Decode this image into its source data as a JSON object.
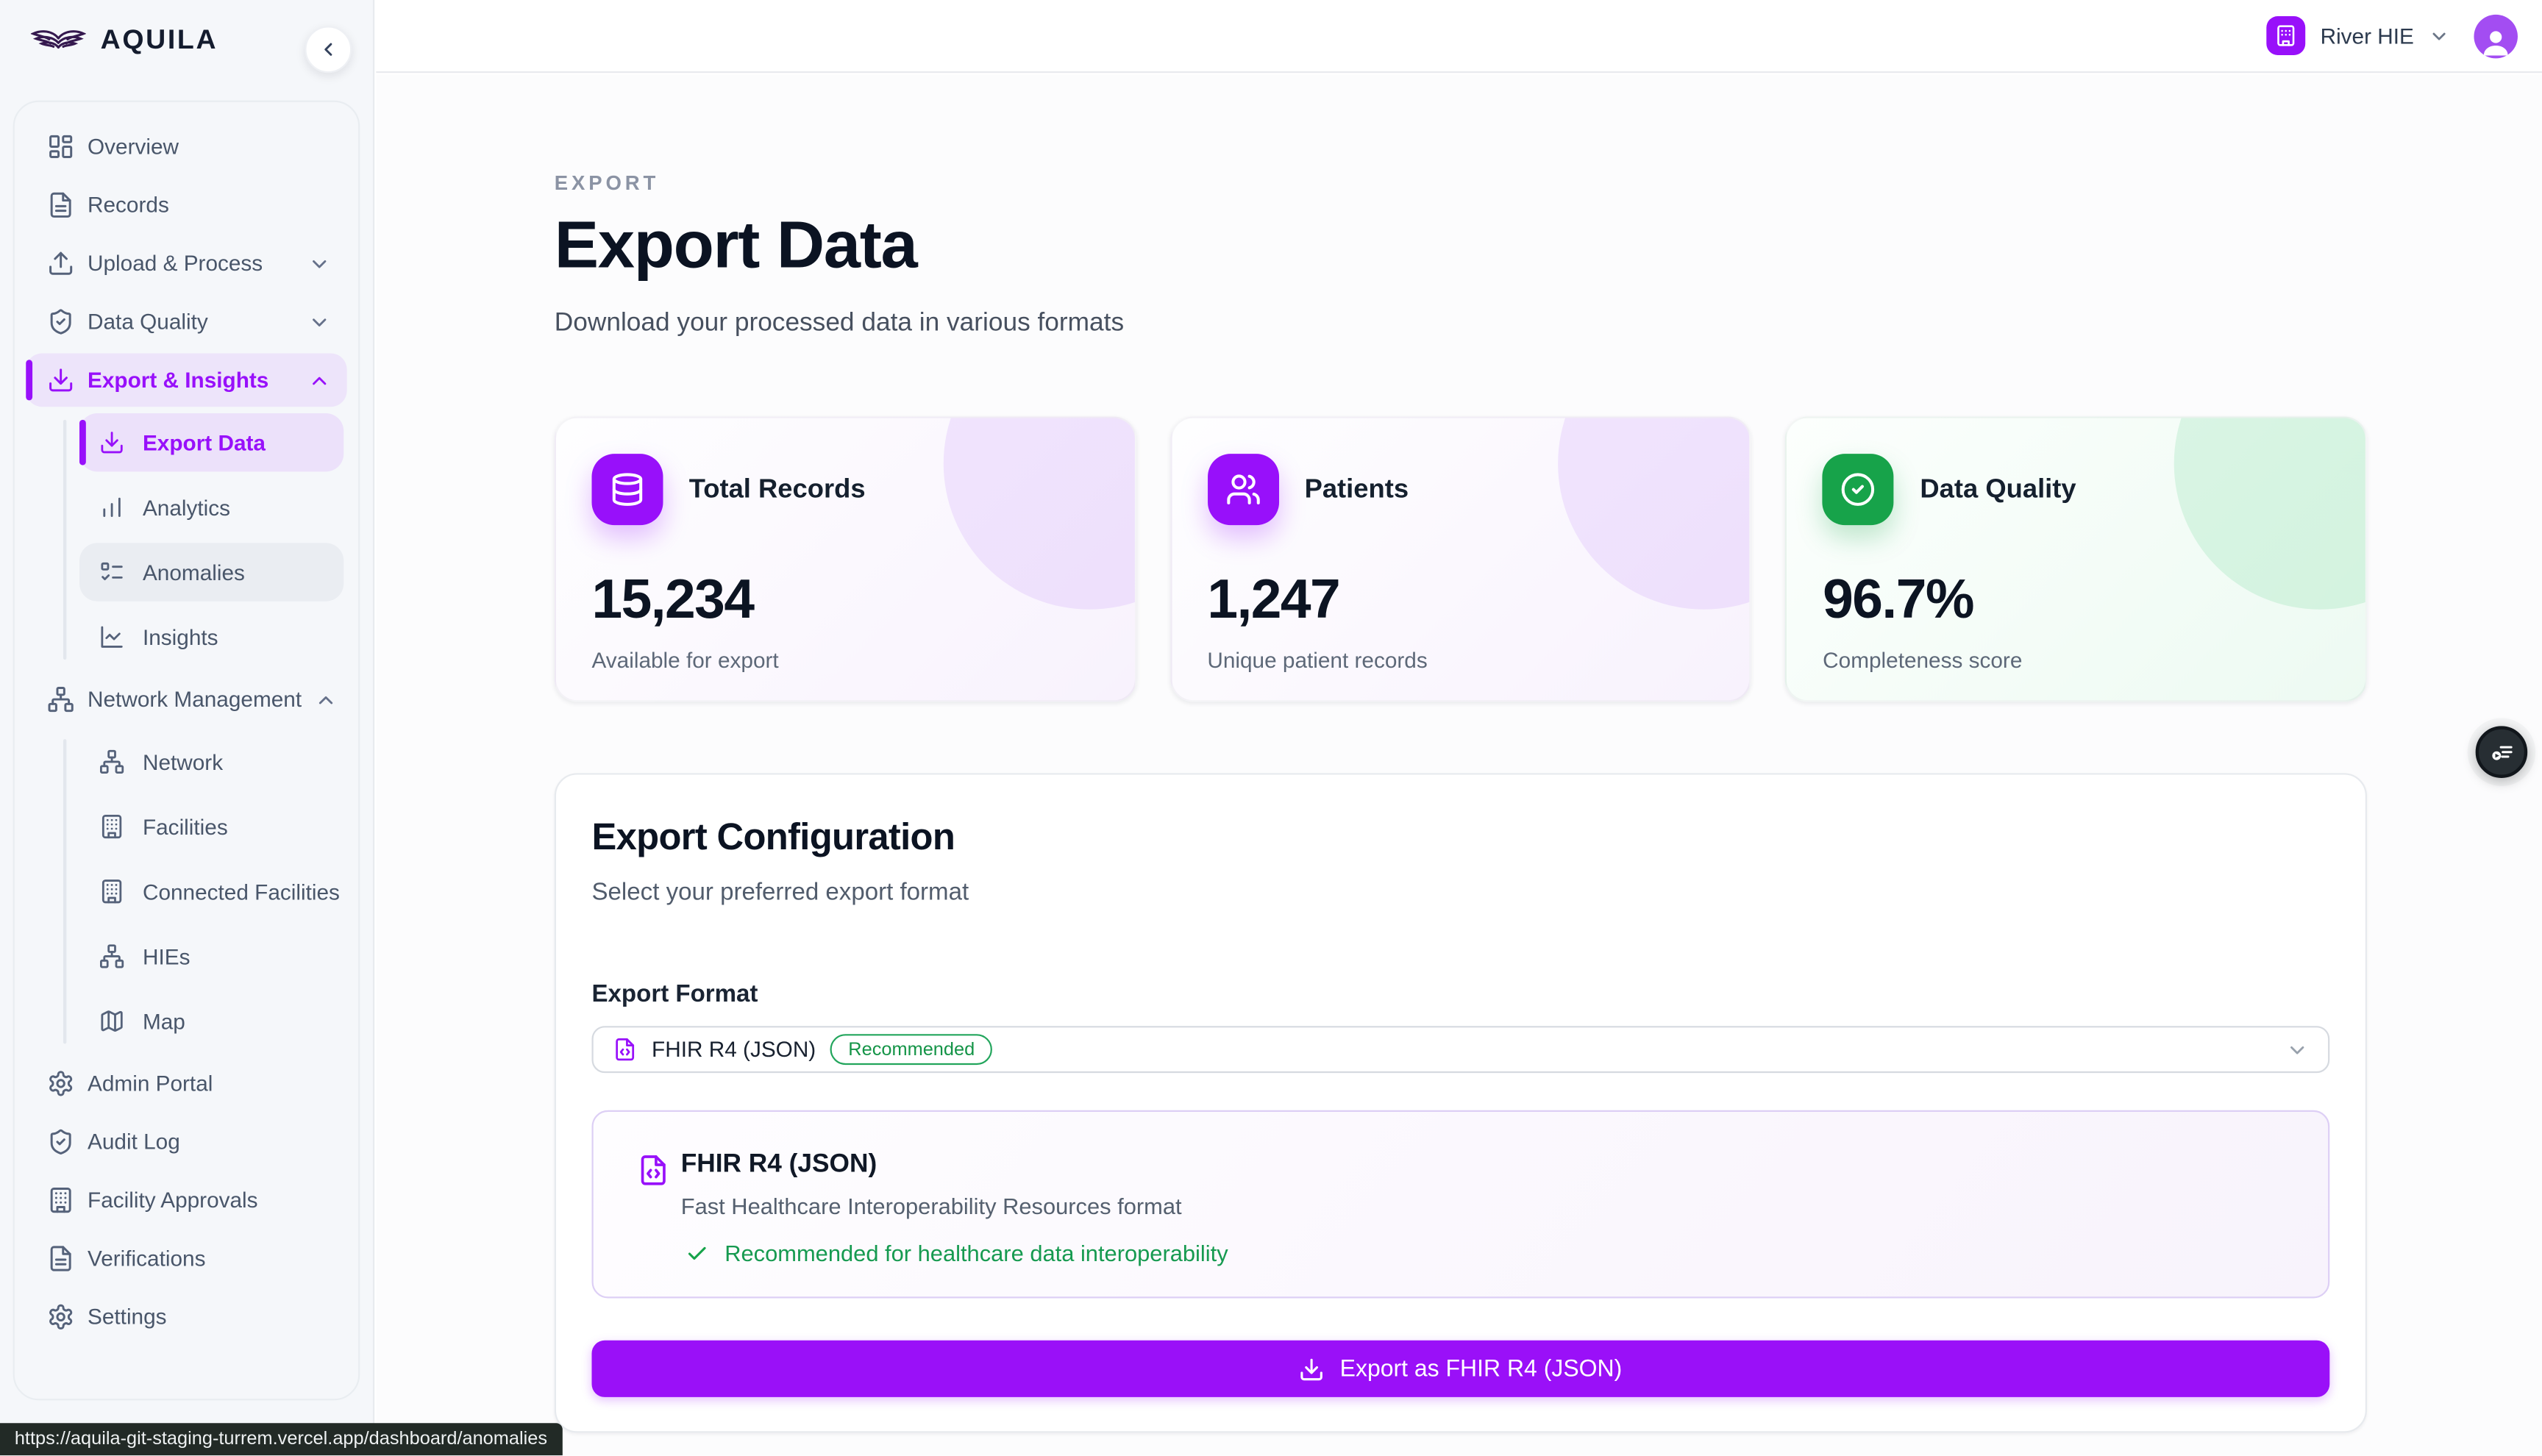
{
  "brand": {
    "name": "AQUILA"
  },
  "sidebar": {
    "items": [
      {
        "label": "Overview",
        "icon": "dashboard-icon"
      },
      {
        "label": "Records",
        "icon": "file-icon"
      },
      {
        "label": "Upload & Process",
        "icon": "upload-icon",
        "chevron": "down"
      },
      {
        "label": "Data Quality",
        "icon": "shield-check-icon",
        "chevron": "down"
      },
      {
        "label": "Export & Insights",
        "icon": "download-icon",
        "chevron": "up",
        "active": true,
        "children": [
          {
            "label": "Export Data",
            "icon": "download-icon",
            "active": true
          },
          {
            "label": "Analytics",
            "icon": "bar-chart-icon"
          },
          {
            "label": "Anomalies",
            "icon": "list-checks-icon",
            "hovered": true
          },
          {
            "label": "Insights",
            "icon": "line-chart-icon"
          }
        ]
      },
      {
        "label": "Network Management",
        "icon": "sitemap-icon",
        "chevron": "up",
        "children": [
          {
            "label": "Network",
            "icon": "sitemap-icon"
          },
          {
            "label": "Facilities",
            "icon": "building-icon"
          },
          {
            "label": "Connected Facilities",
            "icon": "building-icon"
          },
          {
            "label": "HIEs",
            "icon": "sitemap-icon"
          },
          {
            "label": "Map",
            "icon": "map-icon"
          }
        ]
      },
      {
        "label": "Admin Portal",
        "icon": "gear-icon"
      },
      {
        "label": "Audit Log",
        "icon": "shield-check-icon"
      },
      {
        "label": "Facility Approvals",
        "icon": "building-icon"
      },
      {
        "label": "Verifications",
        "icon": "file-icon"
      },
      {
        "label": "Settings",
        "icon": "gear-icon"
      }
    ]
  },
  "header": {
    "org_name": "River HIE"
  },
  "page": {
    "eyebrow": "EXPORT",
    "title": "Export Data",
    "subtitle": "Download your processed data in various formats"
  },
  "stats": [
    {
      "icon": "database-icon",
      "theme": "purple",
      "label": "Total Records",
      "value": "15,234",
      "caption": "Available for export"
    },
    {
      "icon": "users-icon",
      "theme": "purple",
      "label": "Patients",
      "value": "1,247",
      "caption": "Unique patient records"
    },
    {
      "icon": "circle-check-icon",
      "theme": "green",
      "label": "Data Quality",
      "value": "96.7%",
      "caption": "Completeness score"
    }
  ],
  "config": {
    "title": "Export Configuration",
    "subtitle": "Select your preferred export format",
    "format_label": "Export Format",
    "select": {
      "value": "FHIR R4 (JSON)",
      "badge": "Recommended"
    },
    "info": {
      "title": "FHIR R4 (JSON)",
      "description": "Fast Healthcare Interoperability Resources format",
      "note": "Recommended for healthcare data interoperability"
    },
    "export_button": "Export as FHIR R4 (JSON)"
  },
  "statusbar": {
    "url": "https://aquila-git-staging-turrem.vercel.app/dashboard/anomalies"
  },
  "colors": {
    "accent": "#9810fa",
    "green": "#16a34a",
    "dark": "#0b1322"
  }
}
